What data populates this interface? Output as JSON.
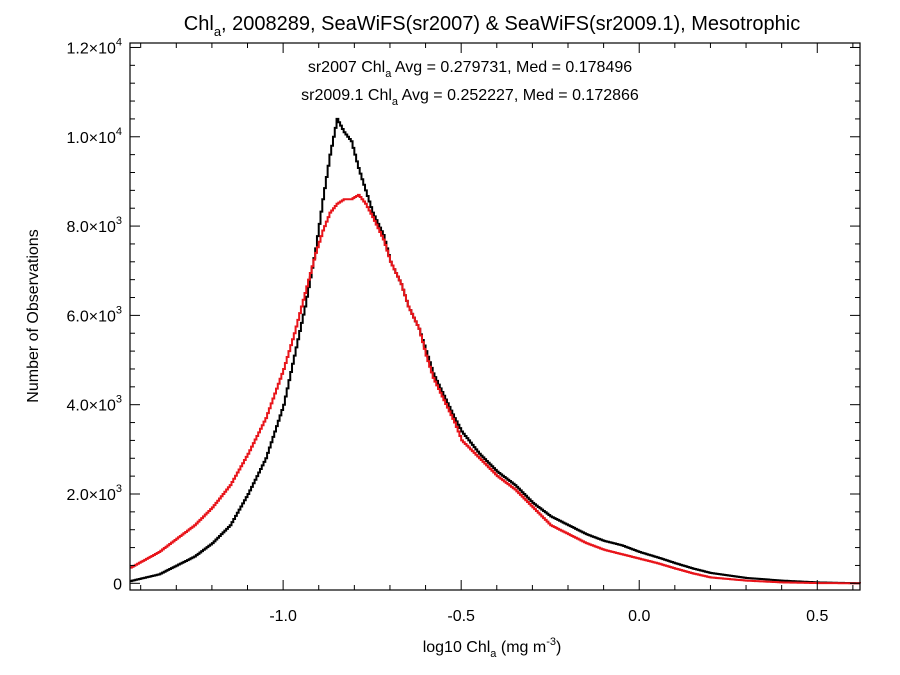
{
  "chart_data": {
    "type": "line",
    "title": {
      "pre": "Chl",
      "sub": "a",
      "post": ", 2008289, SeaWiFS(sr2007) & SeaWiFS(sr2009.1), Mesotrophic"
    },
    "xlabel": {
      "pre": "log10 Chl",
      "sub": "a",
      "mid": " (mg m",
      "sup": "-3",
      "post": ")"
    },
    "ylabel": "Number of Observations",
    "xlim": [
      -1.43,
      0.62
    ],
    "ylim": [
      -150,
      12100
    ],
    "x_ticks": [
      {
        "value": -1.0,
        "label": "-1.0"
      },
      {
        "value": -0.5,
        "label": "-0.5"
      },
      {
        "value": 0.0,
        "label": "0.0"
      },
      {
        "value": 0.5,
        "label": "0.5"
      }
    ],
    "y_ticks": [
      {
        "value": 0,
        "mant": "0",
        "exp": ""
      },
      {
        "value": 2000,
        "mant": "2.0×10",
        "exp": "3"
      },
      {
        "value": 4000,
        "mant": "4.0×10",
        "exp": "3"
      },
      {
        "value": 6000,
        "mant": "6.0×10",
        "exp": "3"
      },
      {
        "value": 8000,
        "mant": "8.0×10",
        "exp": "3"
      },
      {
        "value": 10000,
        "mant": "1.0×10",
        "exp": "4"
      },
      {
        "value": 12000,
        "mant": "1.2×10",
        "exp": "4"
      }
    ],
    "annotations": [
      {
        "pre": "sr2007 Chl",
        "sub": "a",
        "post": " Avg = 0.279731, Med = 0.178496",
        "color": "#000000"
      },
      {
        "pre": "sr2009.1 Chl",
        "sub": "a",
        "post": " Avg = 0.252227, Med = 0.172866",
        "color": "#e8141a"
      }
    ],
    "series": [
      {
        "color": "#000000",
        "x": [
          -1.43,
          -1.35,
          -1.3,
          -1.25,
          -1.2,
          -1.15,
          -1.1,
          -1.05,
          -1.0,
          -0.97,
          -0.94,
          -0.91,
          -0.89,
          -0.87,
          -0.85,
          -0.83,
          -0.81,
          -0.79,
          -0.77,
          -0.75,
          -0.72,
          -0.7,
          -0.67,
          -0.65,
          -0.62,
          -0.6,
          -0.58,
          -0.55,
          -0.52,
          -0.5,
          -0.45,
          -0.4,
          -0.35,
          -0.3,
          -0.25,
          -0.2,
          -0.15,
          -0.1,
          -0.05,
          0.0,
          0.05,
          0.1,
          0.15,
          0.2,
          0.3,
          0.4,
          0.5,
          0.62
        ],
        "y": [
          50,
          200,
          400,
          600,
          900,
          1300,
          2000,
          2800,
          4000,
          5100,
          6200,
          7500,
          8600,
          9600,
          10400,
          10100,
          9900,
          9300,
          8800,
          8300,
          7800,
          7200,
          6700,
          6200,
          5700,
          5200,
          4700,
          4200,
          3700,
          3400,
          2900,
          2500,
          2200,
          1800,
          1500,
          1300,
          1100,
          950,
          850,
          700,
          580,
          450,
          330,
          230,
          120,
          60,
          20,
          0
        ]
      },
      {
        "color": "#e8141a",
        "x": [
          -1.43,
          -1.35,
          -1.3,
          -1.25,
          -1.2,
          -1.15,
          -1.1,
          -1.05,
          -1.0,
          -0.97,
          -0.94,
          -0.91,
          -0.89,
          -0.87,
          -0.85,
          -0.83,
          -0.81,
          -0.79,
          -0.77,
          -0.75,
          -0.72,
          -0.7,
          -0.67,
          -0.65,
          -0.62,
          -0.6,
          -0.58,
          -0.55,
          -0.52,
          -0.5,
          -0.45,
          -0.4,
          -0.35,
          -0.3,
          -0.25,
          -0.2,
          -0.15,
          -0.1,
          -0.05,
          0.0,
          0.05,
          0.1,
          0.15,
          0.2,
          0.3,
          0.4,
          0.5,
          0.62
        ],
        "y": [
          350,
          700,
          1000,
          1300,
          1700,
          2200,
          2900,
          3700,
          4800,
          5600,
          6500,
          7400,
          7900,
          8300,
          8500,
          8600,
          8600,
          8700,
          8500,
          8200,
          7700,
          7200,
          6700,
          6200,
          5700,
          5100,
          4600,
          4100,
          3600,
          3200,
          2800,
          2400,
          2100,
          1700,
          1300,
          1100,
          900,
          750,
          650,
          550,
          450,
          330,
          220,
          130,
          60,
          20,
          5,
          0
        ]
      }
    ]
  }
}
